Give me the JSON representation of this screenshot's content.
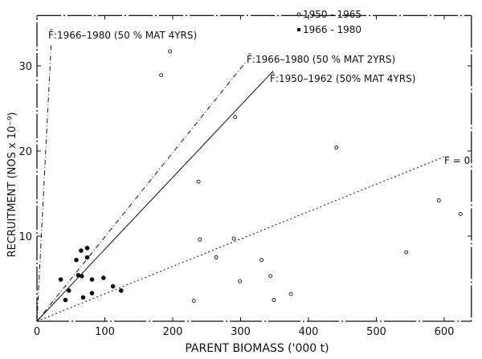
{
  "chart_data": {
    "type": "scatter",
    "title": "",
    "xlabel": "PARENT BIOMASS ('000 t)",
    "ylabel": "RECRUITMENT (NOS x 10⁻⁹)",
    "xlim": [
      0,
      640
    ],
    "ylim": [
      0,
      36
    ],
    "xticks": [
      0,
      100,
      200,
      300,
      400,
      500,
      600
    ],
    "yticks": [
      10,
      20,
      30
    ],
    "grid": false,
    "legend_position": "top-right",
    "series": [
      {
        "name": "1950 - 1965",
        "marker": "open-circle",
        "points": [
          [
            183,
            28.9
          ],
          [
            196,
            31.7
          ],
          [
            292,
            24.0
          ],
          [
            238,
            16.4
          ],
          [
            240,
            9.6
          ],
          [
            290,
            9.7
          ],
          [
            264,
            7.5
          ],
          [
            331,
            7.2
          ],
          [
            299,
            4.7
          ],
          [
            231,
            2.4
          ],
          [
            344,
            5.3
          ],
          [
            349,
            2.5
          ],
          [
            374,
            3.2
          ],
          [
            441,
            20.4
          ],
          [
            544,
            8.1
          ],
          [
            592,
            14.2
          ],
          [
            624,
            12.6
          ]
        ]
      },
      {
        "name": "1966 - 1980",
        "marker": "filled-circle",
        "points": [
          [
            35,
            4.9
          ],
          [
            65,
            8.3
          ],
          [
            74,
            8.6
          ],
          [
            58,
            7.2
          ],
          [
            74,
            7.5
          ],
          [
            61,
            5.4
          ],
          [
            66,
            5.3
          ],
          [
            81,
            4.9
          ],
          [
            98,
            5.1
          ],
          [
            47,
            3.6
          ],
          [
            81,
            3.3
          ],
          [
            68,
            2.8
          ],
          [
            42,
            2.5
          ],
          [
            112,
            4.1
          ],
          [
            124,
            3.6
          ]
        ]
      }
    ],
    "lines": [
      {
        "label": "F̄:1966–1980 (50 % MAT 4YRS)",
        "slope": 1.55,
        "x_end": 21,
        "style": "dash-dot"
      },
      {
        "label": "F̄:1966–1980 (50 % MAT 2YRS)",
        "slope": 0.099,
        "x_end": 309,
        "style": "dash-dot"
      },
      {
        "label": "F̄:1950–1962 (50% MAT 4YRS)",
        "slope": 0.0845,
        "x_end": 348,
        "style": "solid"
      },
      {
        "label": "F = 0",
        "slope": 0.0322,
        "x_end": 600,
        "style": "dotted"
      }
    ]
  }
}
